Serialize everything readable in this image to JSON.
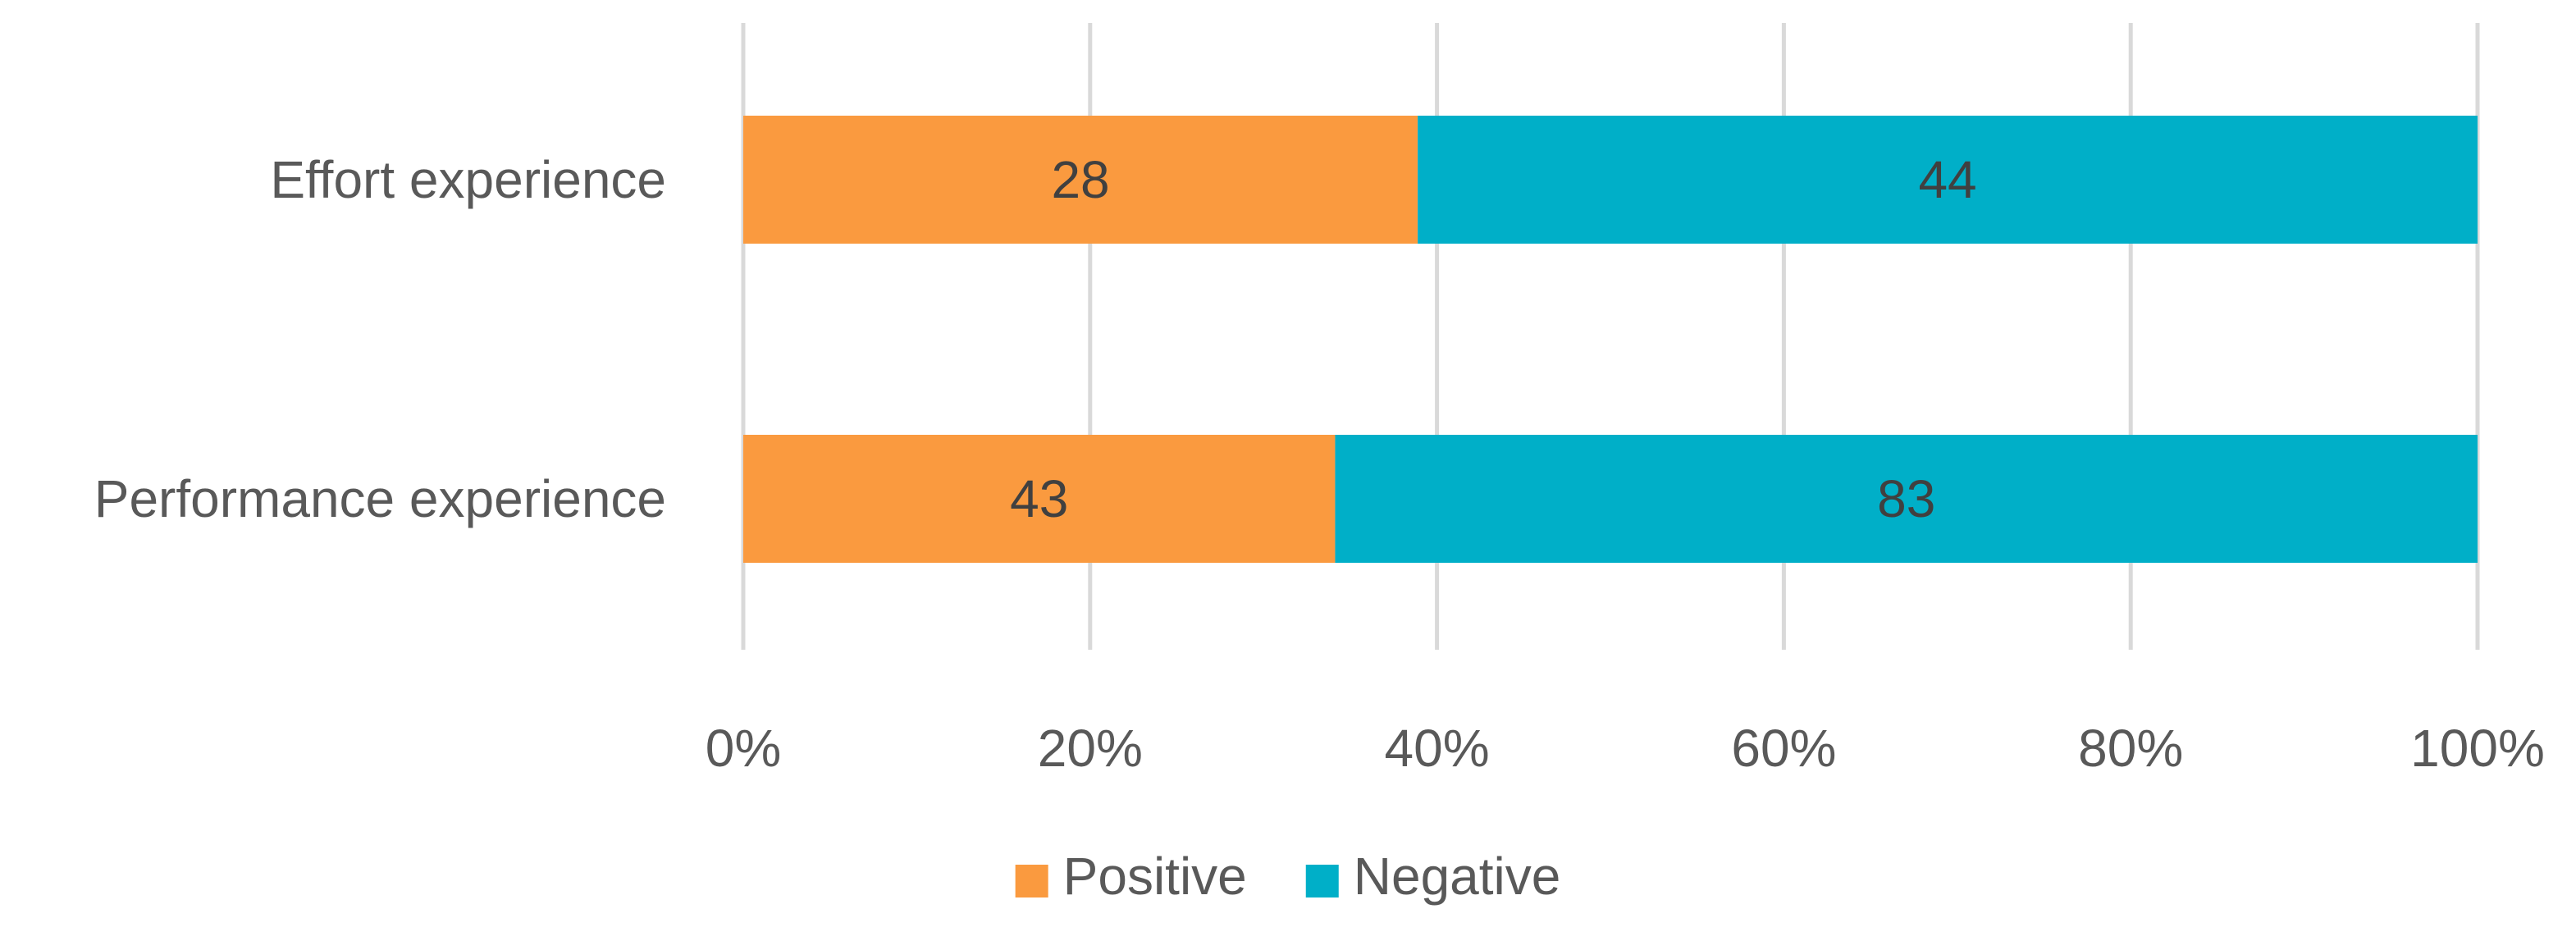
{
  "chart_data": {
    "type": "bar",
    "orientation": "horizontal",
    "stacking": "percent",
    "categories": [
      "Effort experience",
      "Performance experience"
    ],
    "series": [
      {
        "name": "Positive",
        "values": [
          28,
          43
        ],
        "color": "#fa9a3f"
      },
      {
        "name": "Negative",
        "values": [
          44,
          83
        ],
        "color": "#00afc8"
      }
    ],
    "x_ticks": [
      "0%",
      "20%",
      "40%",
      "60%",
      "80%",
      "100%"
    ],
    "xlim": [
      0,
      100
    ],
    "grid": true,
    "legend": "bottom",
    "title": "",
    "xlabel": "",
    "ylabel": ""
  }
}
